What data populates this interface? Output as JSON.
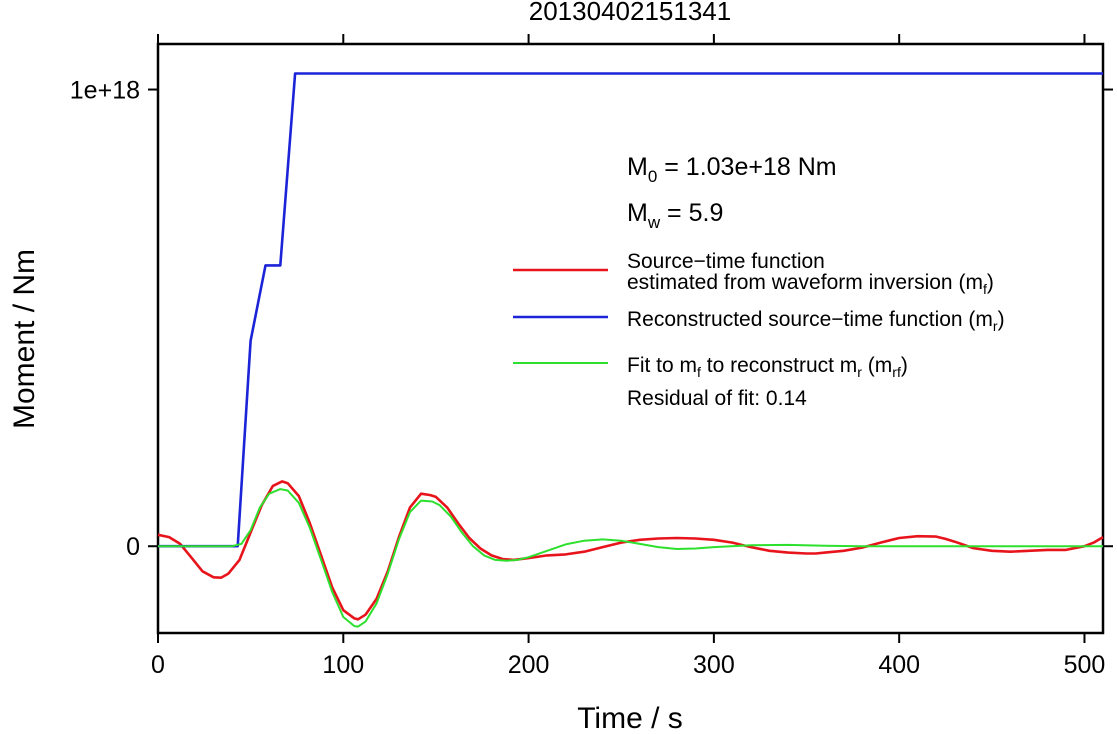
{
  "chart_data": {
    "type": "line",
    "title": "20130402151341",
    "xlabel": "Time / s",
    "ylabel": "Moment / Nm",
    "xlim": [
      0,
      510
    ],
    "ylim": [
      -1.9e+17,
      1.0997e+18
    ],
    "x_ticks": [
      0,
      100,
      200,
      300,
      400,
      500
    ],
    "y_ticks": [
      {
        "value": 0,
        "label": "0"
      },
      {
        "value": 1e+18,
        "label": "1e+18"
      }
    ],
    "grid": false,
    "annotations": {
      "m0_sym": "M",
      "m0_sub": "0",
      "m0_text": " = 1.03e+18 Nm",
      "mw_sym": "M",
      "mw_sub": "w",
      "mw_text": " = 5.9",
      "residual": "Residual of fit: 0.14"
    },
    "legend": {
      "position": "right",
      "entries": [
        {
          "color": "#e8141c",
          "line1": "Source−time function",
          "line2_pre": "estimated from waveform inversion (m",
          "line2_sub": "f",
          "line2_post": ")"
        },
        {
          "color": "#1c24d8",
          "line1_pre": "Reconstructed source−time function (m",
          "line1_sub": "r",
          "line1_post": ")"
        },
        {
          "color": "#2ee02e",
          "pre": "Fit to m",
          "sub1": "f",
          "mid": " to reconstruct m",
          "sub2": "r",
          "post": " (m",
          "sub3": "rf",
          "post2": ")"
        }
      ]
    },
    "series": [
      {
        "key": "mf",
        "color": "#e8141c",
        "x": [
          0,
          6,
          12,
          18,
          24,
          30,
          34,
          38,
          44,
          50,
          56,
          62,
          67,
          70,
          76,
          82,
          88,
          94,
          100,
          106,
          108,
          112,
          118,
          124,
          130,
          136,
          142,
          147,
          150,
          156,
          162,
          168,
          174,
          180,
          186,
          192,
          200,
          210,
          220,
          230,
          240,
          250,
          260,
          270,
          280,
          290,
          300,
          310,
          320,
          330,
          340,
          350,
          355,
          360,
          370,
          380,
          390,
          400,
          410,
          420,
          425,
          430,
          440,
          450,
          460,
          470,
          480,
          490,
          500,
          505,
          510
        ],
        "y": [
          2.5e+16,
          2e+16,
          5000000000000000.0,
          -2.5e+16,
          -5.5e+16,
          -6.8e+16,
          -6.9e+16,
          -6e+16,
          -3e+16,
          3e+16,
          9e+16,
          1.32e+17,
          1.42e+17,
          1.38e+17,
          1.1e+17,
          5e+16,
          -2e+16,
          -9e+16,
          -1.4e+17,
          -1.58e+17,
          -1.6e+17,
          -1.5e+17,
          -1.15e+17,
          -5.5e+16,
          2e+16,
          8.5e+16,
          1.15e+17,
          1.12e+17,
          1.08e+17,
          8.5e+16,
          5e+16,
          1.8e+16,
          -5000000000000000.0,
          -2e+16,
          -2.8e+16,
          -3e+16,
          -2.6e+16,
          -2e+16,
          -1.8e+16,
          -1.2e+16,
          -2000000000000000.0,
          8000000000000000.0,
          1.4e+16,
          1.7e+16,
          1.8e+16,
          1.7e+16,
          1.4e+16,
          8000000000000000.0,
          -2000000000000000.0,
          -1e+16,
          -1.4e+16,
          -1.6e+16,
          -1.6e+16,
          -1.4e+16,
          -1e+16,
          -3000000000000000.0,
          8000000000000000.0,
          1.8e+16,
          2.2e+16,
          2.1e+16,
          1.6e+16,
          1e+16,
          -4000000000000000.0,
          -1e+16,
          -1.2e+16,
          -1e+16,
          -8000000000000000.0,
          -8000000000000000.0,
          0.0,
          8000000000000000.0,
          2e+16
        ]
      },
      {
        "key": "mr",
        "color": "#1c24d8",
        "x": [
          0,
          43,
          50,
          58,
          66,
          74,
          510
        ],
        "y": [
          0,
          0,
          4.5e+17,
          6.15e+17,
          6.15e+17,
          1.035e+18,
          1.035e+18
        ]
      },
      {
        "key": "mrf",
        "color": "#2ee02e",
        "x": [
          0,
          20,
          40,
          45,
          50,
          55,
          60,
          66,
          70,
          76,
          82,
          88,
          94,
          100,
          106,
          108,
          112,
          118,
          124,
          130,
          136,
          142,
          148,
          152,
          158,
          164,
          170,
          176,
          182,
          188,
          194,
          200,
          210,
          220,
          230,
          240,
          250,
          260,
          270,
          280,
          290,
          300,
          320,
          340,
          360,
          380,
          400,
          420,
          440,
          460,
          480,
          500,
          510
        ],
        "y": [
          0,
          0,
          0,
          5000000000000000.0,
          3.5e+16,
          8.5e+16,
          1.15e+17,
          1.25e+17,
          1.22e+17,
          9.5e+16,
          4e+16,
          -3e+16,
          -1e+17,
          -1.55e+17,
          -1.75e+17,
          -1.76e+17,
          -1.65e+17,
          -1.25e+17,
          -6e+16,
          1.5e+16,
          7.5e+16,
          1e+17,
          9.8e+16,
          9e+16,
          6.5e+16,
          3e+16,
          0.0,
          -2e+16,
          -3e+16,
          -3.2e+16,
          -3e+16,
          -2.4e+16,
          -1e+16,
          4000000000000000.0,
          1.2e+16,
          1.5e+16,
          1.2e+16,
          5000000000000000.0,
          -2000000000000000.0,
          -6000000000000000.0,
          -5000000000000000.0,
          -2000000000000000.0,
          2000000000000000.0,
          3000000000000000.0,
          1000000000000000.0,
          0.0,
          0.0,
          0.0,
          0.0,
          0.0,
          0.0,
          0.0,
          0.0
        ]
      }
    ]
  }
}
